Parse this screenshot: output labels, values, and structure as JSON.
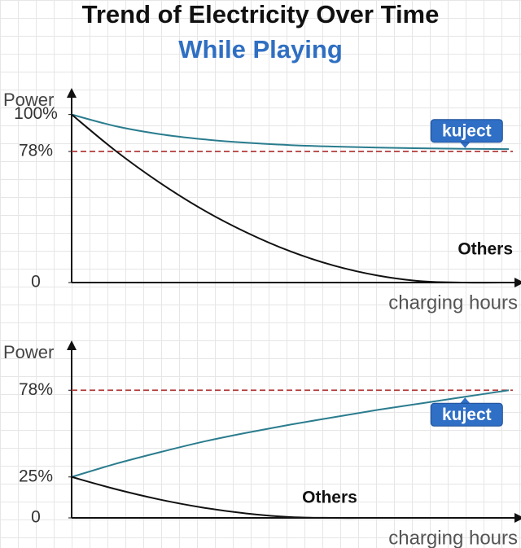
{
  "title": "Trend of Electricity Over Time",
  "subtitle": "While Playing",
  "chart_data": [
    {
      "type": "line",
      "ylabel": "Power",
      "xlabel": "charging hours",
      "categories": [
        null,
        null,
        null,
        null,
        null,
        null,
        null,
        null,
        null,
        null,
        null
      ],
      "series": [
        {
          "name": "kuject",
          "color": "#2a7c8e",
          "values": [
            100,
            93.1,
            88.4,
            85.3,
            83.2,
            81.8,
            80.9,
            80.3,
            79.9,
            79.6,
            79.4
          ]
        },
        {
          "name": "Others",
          "color": "#111111",
          "values": [
            100,
            78.5,
            59.7,
            43.4,
            29.8,
            18.6,
            10.1,
            4.2,
            0.8,
            0,
            0
          ]
        }
      ],
      "hline": 78,
      "hline_color": "#b23a3a",
      "ylim": [
        0,
        110
      ],
      "yticks": [
        {
          "value": 100,
          "label": "100%"
        },
        {
          "value": 78,
          "label": "78%"
        },
        0
      ]
    },
    {
      "type": "line",
      "ylabel": "Power",
      "xlabel": "charging hours",
      "categories": [
        null,
        null,
        null,
        null,
        null,
        null,
        null,
        null,
        null,
        null,
        null
      ],
      "series": [
        {
          "name": "kuject",
          "color": "#2a7c8e",
          "values": [
            25,
            33,
            40,
            46.5,
            52,
            57,
            61.5,
            66,
            70,
            74,
            78
          ]
        },
        {
          "name": "Others",
          "color": "#111111",
          "values": [
            25,
            17.6,
            11.3,
            6.3,
            2.7,
            0.5,
            0,
            0,
            0,
            0,
            0
          ]
        }
      ],
      "hline": 78,
      "hline_color": "#b23a3a",
      "ylim": [
        0,
        105
      ],
      "yticks": [
        {
          "value": 78,
          "label": "78%"
        },
        {
          "value": 25,
          "label": "25%"
        },
        0
      ]
    }
  ]
}
